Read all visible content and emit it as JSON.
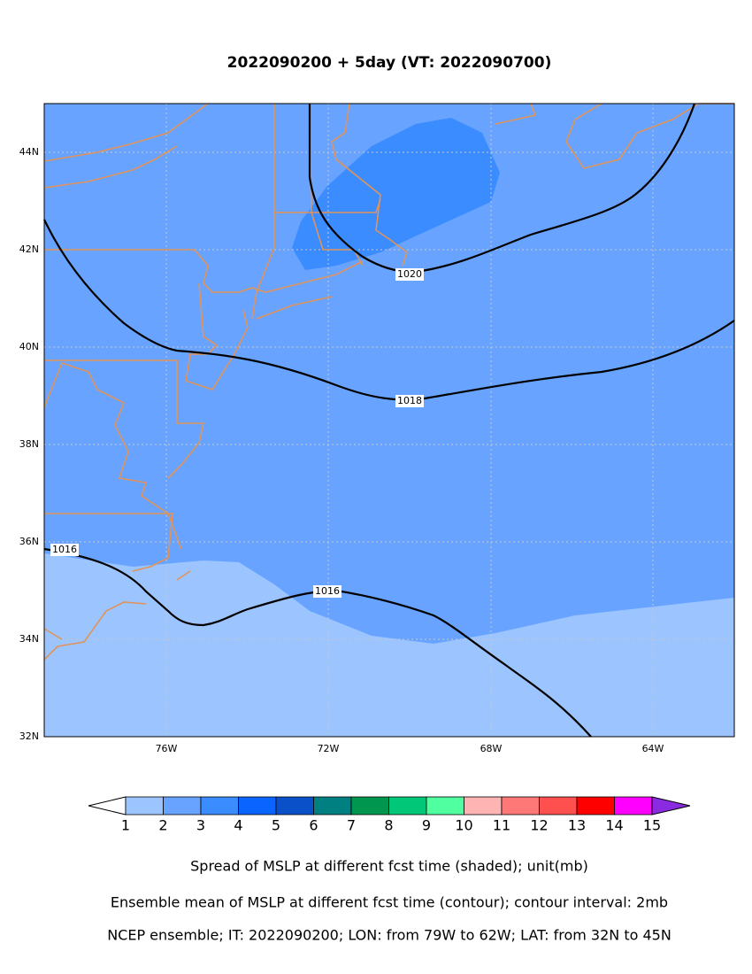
{
  "title": "2022090200 + 5day (VT: 2022090700)",
  "map": {
    "lat_labels": [
      "44N",
      "42N",
      "40N",
      "38N",
      "36N",
      "34N",
      "32N"
    ],
    "lon_labels": [
      "76W",
      "72W",
      "68W",
      "64W"
    ],
    "contour_labels": [
      "1020",
      "1018",
      "1016",
      "1016"
    ]
  },
  "colorbar": {
    "labels": [
      "1",
      "2",
      "3",
      "4",
      "5",
      "6",
      "7",
      "8",
      "9",
      "10",
      "11",
      "12",
      "13",
      "14",
      "15"
    ]
  },
  "captions": [
    "Spread of MSLP at different fcst time (shaded); unit(mb)",
    "Ensemble mean of MSLP at different fcst time (contour); contour interval: 2mb",
    "NCEP ensemble; IT: 2022090200; LON: from 79W to 62W; LAT: from 32N to 45N"
  ]
}
